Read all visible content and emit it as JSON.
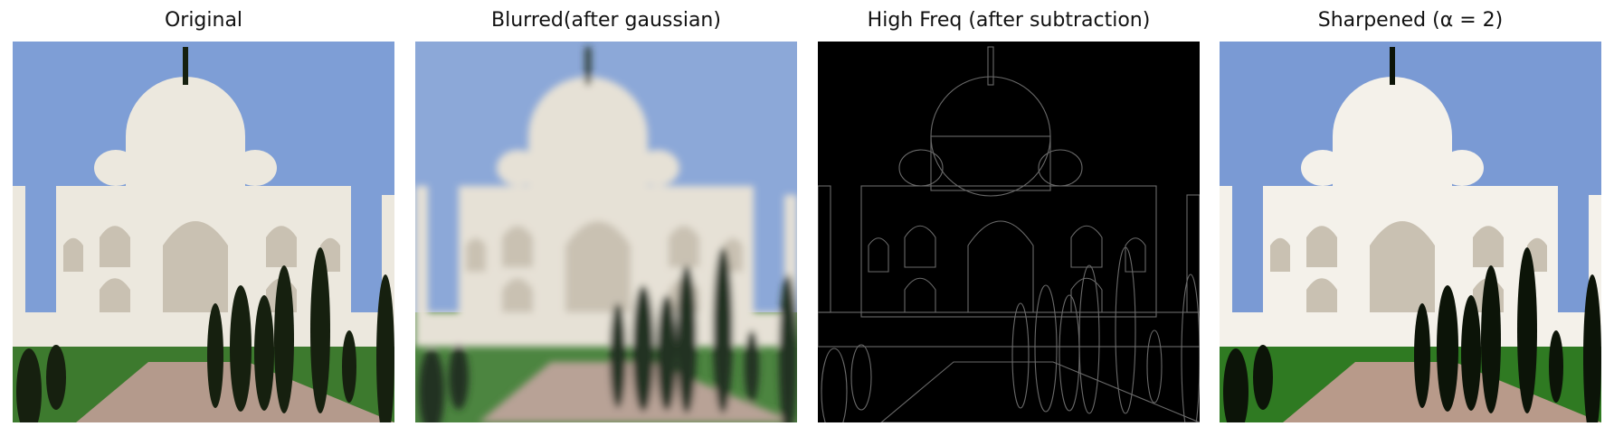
{
  "panels": [
    {
      "title": "Original",
      "variant": "original",
      "colors": {
        "sky": "#7e9ed6",
        "marble": "#ece8de",
        "grass": "#3d7a2e",
        "path": "#b49a8c",
        "tree": "#16200f"
      }
    },
    {
      "title": "Blurred(after gaussian)",
      "variant": "blurred",
      "colors": {
        "sky": "#8ca8d8",
        "marble": "#e6e1d6",
        "grass": "#4c8540",
        "path": "#b8a296",
        "tree": "#223020"
      }
    },
    {
      "title": "High Freq (after subtraction)",
      "variant": "highfreq",
      "colors": {
        "background": "#000000",
        "edge": "#6a6a6a"
      }
    },
    {
      "title": "Sharpened (α = 2)",
      "variant": "sharpened",
      "colors": {
        "sky": "#7a9ad4",
        "marble": "#f4f1ea",
        "grass": "#2f7a22",
        "path": "#b89a8a",
        "tree": "#0c1408"
      }
    }
  ]
}
